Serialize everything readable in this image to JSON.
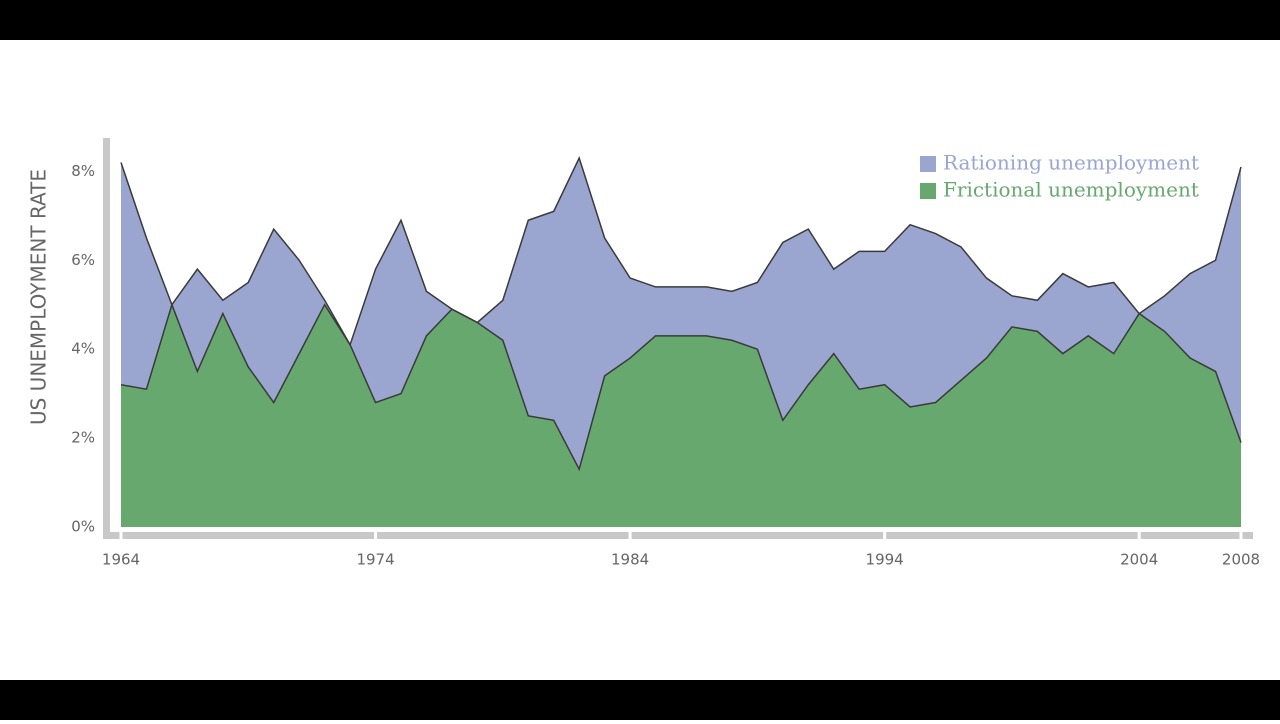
{
  "chart_data": {
    "type": "stacked_area",
    "ylabel": "US UNEMPLOYMENT RATE",
    "x": [
      1964,
      1965,
      1966,
      1967,
      1968,
      1969,
      1970,
      1971,
      1972,
      1973,
      1974,
      1975,
      1976,
      1977,
      1978,
      1979,
      1980,
      1981,
      1982,
      1983,
      1984,
      1985,
      1986,
      1987,
      1988,
      1989,
      1990,
      1991,
      1992,
      1993,
      1994,
      1995,
      1996,
      1997,
      1998,
      1999,
      2000,
      2001,
      2002,
      2003,
      2004,
      2005,
      2006,
      2007,
      2008
    ],
    "series": [
      {
        "name": "Frictional unemployment",
        "color": "#67a86f",
        "values": [
          3.2,
          3.1,
          5.0,
          3.5,
          4.8,
          3.6,
          2.8,
          3.9,
          5.0,
          4.1,
          2.8,
          3.0,
          4.3,
          4.9,
          4.6,
          4.2,
          2.5,
          2.4,
          1.3,
          3.4,
          3.8,
          4.3,
          4.3,
          4.3,
          4.2,
          4.0,
          2.4,
          3.2,
          3.9,
          3.1,
          3.2,
          2.7,
          2.8,
          3.3,
          3.8,
          4.5,
          4.4,
          3.9,
          4.3,
          3.9,
          4.8,
          4.4,
          3.8,
          3.5,
          1.9
        ]
      },
      {
        "name": "Rationing unemployment",
        "color": "#9ba6d0",
        "values": [
          5.0,
          3.4,
          0,
          2.3,
          0.3,
          1.9,
          3.9,
          2.1,
          0.1,
          0,
          3.0,
          3.9,
          1.0,
          0,
          0,
          0.9,
          4.4,
          4.7,
          7.0,
          3.1,
          1.8,
          1.1,
          1.1,
          1.1,
          1.1,
          1.5,
          4.0,
          3.5,
          1.9,
          3.1,
          3.0,
          4.1,
          3.8,
          3.0,
          1.8,
          0.7,
          0.7,
          1.8,
          1.1,
          1.6,
          0,
          0.8,
          1.9,
          2.5,
          6.2
        ]
      }
    ],
    "xlim": [
      1964,
      2008
    ],
    "xticks": [
      1964,
      1974,
      1984,
      1994,
      2004,
      2008
    ],
    "ylim": [
      0,
      8.75
    ],
    "yticks": [
      {
        "value": 0,
        "label": "0%"
      },
      {
        "value": 2,
        "label": "2%"
      },
      {
        "value": 4,
        "label": "4%"
      },
      {
        "value": 6,
        "label": "6%"
      },
      {
        "value": 8,
        "label": "8%"
      }
    ],
    "legend": "upper right"
  }
}
